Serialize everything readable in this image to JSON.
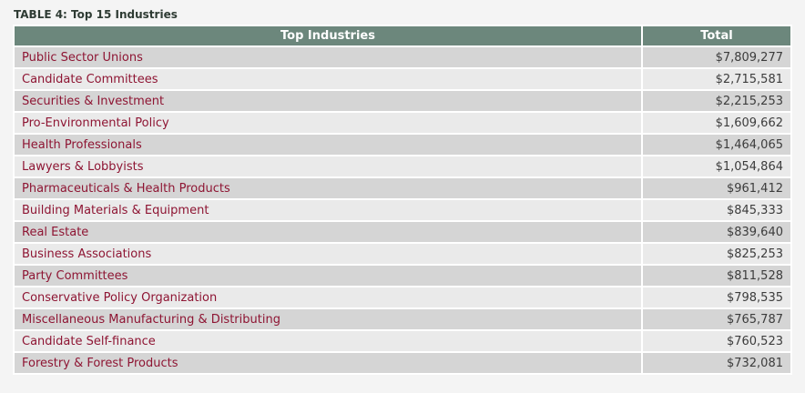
{
  "page": {
    "title": "TABLE 4: Top 15 Industries"
  },
  "colors": {
    "header_background": "#6c877c",
    "header_text": "#ffffff",
    "industry_text": "#8e1533",
    "total_text": "#3c3c3c",
    "row_odd_background": "#d5d5d5",
    "row_even_background": "#eaeaea",
    "page_background": "#f4f4f4"
  },
  "table": {
    "columns": [
      "Top Industries",
      "Total"
    ],
    "rows": [
      {
        "industry": "Public Sector Unions",
        "total": "$7,809,277"
      },
      {
        "industry": "Candidate Committees",
        "total": "$2,715,581"
      },
      {
        "industry": "Securities & Investment",
        "total": "$2,215,253"
      },
      {
        "industry": "Pro-Environmental Policy",
        "total": "$1,609,662"
      },
      {
        "industry": "Health Professionals",
        "total": "$1,464,065"
      },
      {
        "industry": "Lawyers & Lobbyists",
        "total": "$1,054,864"
      },
      {
        "industry": "Pharmaceuticals & Health Products",
        "total": "$961,412"
      },
      {
        "industry": "Building Materials & Equipment",
        "total": "$845,333"
      },
      {
        "industry": "Real Estate",
        "total": "$839,640"
      },
      {
        "industry": "Business Associations",
        "total": "$825,253"
      },
      {
        "industry": "Party Committees",
        "total": "$811,528"
      },
      {
        "industry": "Conservative Policy Organization",
        "total": "$798,535"
      },
      {
        "industry": "Miscellaneous Manufacturing & Distributing",
        "total": "$765,787"
      },
      {
        "industry": "Candidate Self-finance",
        "total": "$760,523"
      },
      {
        "industry": "Forestry & Forest Products",
        "total": "$732,081"
      }
    ]
  },
  "chart_data": {
    "type": "table",
    "title": "TABLE 4: Top 15 Industries",
    "columns": [
      "Top Industries",
      "Total"
    ],
    "rows": [
      [
        "Public Sector Unions",
        "$7,809,277"
      ],
      [
        "Candidate Committees",
        "$2,715,581"
      ],
      [
        "Securities & Investment",
        "$2,215,253"
      ],
      [
        "Pro-Environmental Policy",
        "$1,609,662"
      ],
      [
        "Health Professionals",
        "$1,464,065"
      ],
      [
        "Lawyers & Lobbyists",
        "$1,054,864"
      ],
      [
        "Pharmaceuticals & Health Products",
        "$961,412"
      ],
      [
        "Building Materials & Equipment",
        "$845,333"
      ],
      [
        "Real Estate",
        "$839,640"
      ],
      [
        "Business Associations",
        "$825,253"
      ],
      [
        "Party Committees",
        "$811,528"
      ],
      [
        "Conservative Policy Organization",
        "$798,535"
      ],
      [
        "Miscellaneous Manufacturing & Distributing",
        "$765,787"
      ],
      [
        "Candidate Self-finance",
        "$760,523"
      ],
      [
        "Forestry & Forest Products",
        "$732,081"
      ]
    ],
    "values_numeric": [
      7809277,
      2715581,
      2215253,
      1609662,
      1464065,
      1054864,
      961412,
      845333,
      839640,
      825253,
      811528,
      798535,
      765787,
      760523,
      732081
    ]
  }
}
